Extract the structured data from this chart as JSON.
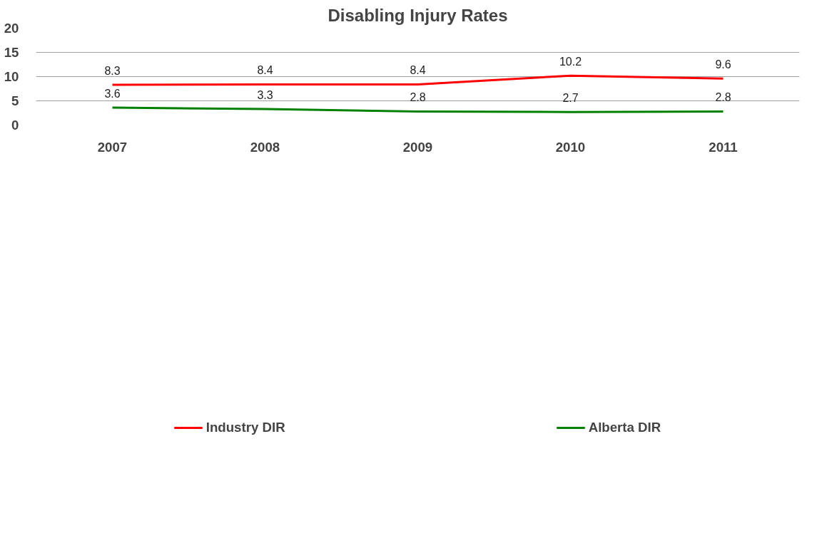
{
  "chart_data": {
    "type": "line",
    "title": "Disabling Injury Rates",
    "categories": [
      "2007",
      "2008",
      "2009",
      "2010",
      "2011"
    ],
    "series": [
      {
        "name": "Industry DIR",
        "color": "#ff0000",
        "values": [
          8.3,
          8.4,
          8.4,
          10.2,
          9.6
        ]
      },
      {
        "name": "Alberta DIR",
        "color": "#008000",
        "values": [
          3.6,
          3.3,
          2.8,
          2.7,
          2.8
        ]
      }
    ],
    "ylim": [
      0,
      20
    ],
    "yticks": [
      0,
      5,
      10,
      15,
      20
    ],
    "grid": "y",
    "data_labels": true,
    "legend": "bottom",
    "marker": "none",
    "line_style": "solid"
  }
}
